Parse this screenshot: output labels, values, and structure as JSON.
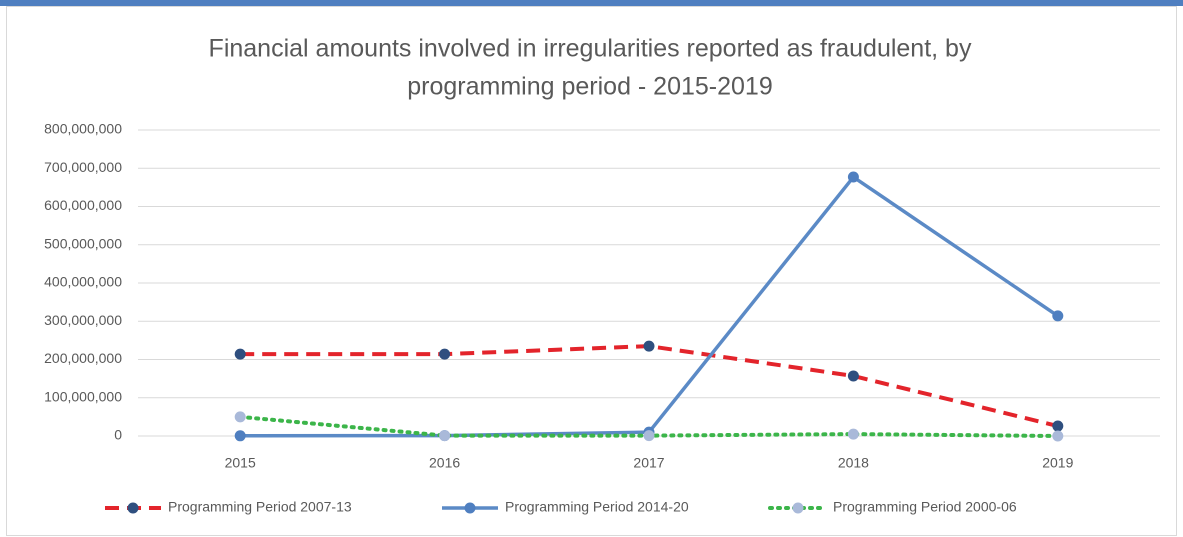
{
  "chart_data": {
    "type": "line",
    "title": [
      "Financial amounts involved in irregularities reported as fraudulent, by",
      "programming period - 2015-2019"
    ],
    "categories": [
      "2015",
      "2016",
      "2017",
      "2018",
      "2019"
    ],
    "series": [
      {
        "name": "Programming Period 2007-13",
        "color": "#e3242b",
        "marker_color": "#2f4f7f",
        "style": "dashed",
        "values": [
          214000000,
          214000000,
          235000000,
          157000000,
          26000000
        ]
      },
      {
        "name": "Programming Period 2014-20",
        "color": "#5b8ac6",
        "marker_color": "#4f7fc0",
        "style": "solid",
        "values": [
          500000,
          1000000,
          10000000,
          677000000,
          314000000
        ]
      },
      {
        "name": "Programming Period 2000-06",
        "color": "#3cb54a",
        "marker_color": "#a9b9d9",
        "style": "dotted",
        "values": [
          50000000,
          1000000,
          1000000,
          5000000,
          0
        ]
      }
    ],
    "ylim": [
      0,
      800000000
    ],
    "yticks": [
      0,
      {
        "value": 100000000,
        "label": "100,000,000"
      },
      {
        "value": 200000000,
        "label": "200,000,000"
      },
      {
        "value": 300000000,
        "label": "300,000,000"
      },
      {
        "value": 400000000,
        "label": "400,000,000"
      },
      {
        "value": 500000000,
        "label": "500,000,000"
      },
      {
        "value": 600000000,
        "label": "600,000,000"
      },
      {
        "value": 700000000,
        "label": "700,000,000"
      },
      {
        "value": 800000000,
        "label": "800,000,000"
      }
    ],
    "grid": true,
    "legend": "bottom"
  }
}
